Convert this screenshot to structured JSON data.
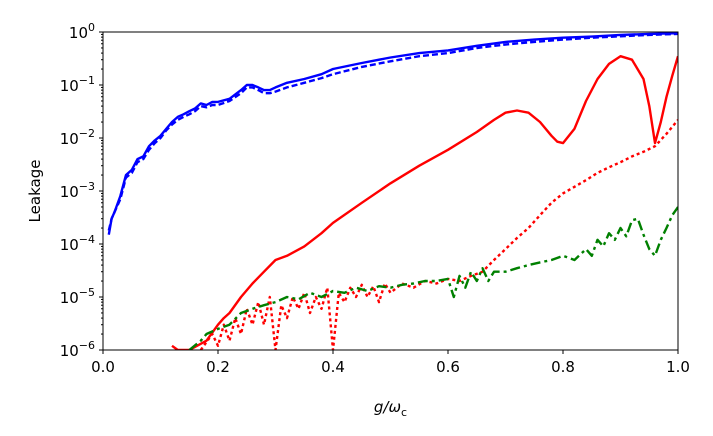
{
  "chart_data": {
    "type": "line",
    "xlabel": "g/ω",
    "xlabel_sub": "c",
    "ylabel": "Leakage",
    "xlim": [
      0.0,
      1.0
    ],
    "ylim": [
      1e-06,
      1
    ],
    "yscale": "log",
    "grid": false,
    "x_ticks": [
      "0.0",
      "0.2",
      "0.4",
      "0.6",
      "0.8",
      "1.0"
    ],
    "y_ticks": [
      {
        "base": "10",
        "exp": "0"
      },
      {
        "base": "10",
        "exp": "−1"
      },
      {
        "base": "10",
        "exp": "−2"
      },
      {
        "base": "10",
        "exp": "−3"
      },
      {
        "base": "10",
        "exp": "−4"
      },
      {
        "base": "10",
        "exp": "−5"
      },
      {
        "base": "10",
        "exp": "−6"
      }
    ],
    "series": [
      {
        "color": "#0000ff",
        "style": "solid",
        "points": [
          [
            0.01,
            0.00015
          ],
          [
            0.015,
            0.0003
          ],
          [
            0.02,
            0.0004
          ],
          [
            0.03,
            0.0008
          ],
          [
            0.04,
            0.002
          ],
          [
            0.05,
            0.0025
          ],
          [
            0.06,
            0.004
          ],
          [
            0.07,
            0.0045
          ],
          [
            0.08,
            0.007
          ],
          [
            0.09,
            0.009
          ],
          [
            0.1,
            0.011
          ],
          [
            0.11,
            0.015
          ],
          [
            0.12,
            0.02
          ],
          [
            0.13,
            0.025
          ],
          [
            0.14,
            0.028
          ],
          [
            0.15,
            0.032
          ],
          [
            0.16,
            0.036
          ],
          [
            0.17,
            0.045
          ],
          [
            0.18,
            0.042
          ],
          [
            0.19,
            0.048
          ],
          [
            0.2,
            0.048
          ],
          [
            0.22,
            0.055
          ],
          [
            0.24,
            0.08
          ],
          [
            0.25,
            0.1
          ],
          [
            0.26,
            0.1
          ],
          [
            0.27,
            0.09
          ],
          [
            0.28,
            0.08
          ],
          [
            0.29,
            0.08
          ],
          [
            0.3,
            0.09
          ],
          [
            0.32,
            0.11
          ],
          [
            0.35,
            0.13
          ],
          [
            0.38,
            0.16
          ],
          [
            0.4,
            0.2
          ],
          [
            0.45,
            0.26
          ],
          [
            0.5,
            0.33
          ],
          [
            0.55,
            0.4
          ],
          [
            0.6,
            0.45
          ],
          [
            0.65,
            0.55
          ],
          [
            0.7,
            0.65
          ],
          [
            0.75,
            0.72
          ],
          [
            0.8,
            0.78
          ],
          [
            0.85,
            0.82
          ],
          [
            0.9,
            0.88
          ],
          [
            0.95,
            0.92
          ],
          [
            1.0,
            0.95
          ]
        ]
      },
      {
        "color": "#0000ff",
        "style": "dashed",
        "points": [
          [
            0.01,
            0.00018
          ],
          [
            0.015,
            0.0003
          ],
          [
            0.02,
            0.0004
          ],
          [
            0.03,
            0.0007
          ],
          [
            0.04,
            0.0018
          ],
          [
            0.05,
            0.0022
          ],
          [
            0.06,
            0.0035
          ],
          [
            0.07,
            0.004
          ],
          [
            0.08,
            0.006
          ],
          [
            0.09,
            0.008
          ],
          [
            0.1,
            0.01
          ],
          [
            0.11,
            0.014
          ],
          [
            0.12,
            0.018
          ],
          [
            0.13,
            0.022
          ],
          [
            0.14,
            0.025
          ],
          [
            0.15,
            0.028
          ],
          [
            0.16,
            0.032
          ],
          [
            0.17,
            0.04
          ],
          [
            0.18,
            0.038
          ],
          [
            0.19,
            0.042
          ],
          [
            0.2,
            0.042
          ],
          [
            0.22,
            0.05
          ],
          [
            0.24,
            0.07
          ],
          [
            0.25,
            0.09
          ],
          [
            0.26,
            0.09
          ],
          [
            0.27,
            0.08
          ],
          [
            0.28,
            0.07
          ],
          [
            0.29,
            0.07
          ],
          [
            0.3,
            0.075
          ],
          [
            0.32,
            0.09
          ],
          [
            0.35,
            0.11
          ],
          [
            0.38,
            0.135
          ],
          [
            0.4,
            0.16
          ],
          [
            0.45,
            0.22
          ],
          [
            0.5,
            0.28
          ],
          [
            0.55,
            0.35
          ],
          [
            0.6,
            0.4
          ],
          [
            0.65,
            0.5
          ],
          [
            0.7,
            0.58
          ],
          [
            0.75,
            0.65
          ],
          [
            0.8,
            0.72
          ],
          [
            0.85,
            0.78
          ],
          [
            0.9,
            0.83
          ],
          [
            0.95,
            0.88
          ],
          [
            1.0,
            0.92
          ]
        ]
      },
      {
        "color": "#ff0000",
        "style": "solid",
        "points": [
          [
            0.12,
            1.2e-06
          ],
          [
            0.13,
            1e-06
          ],
          [
            0.15,
            1e-06
          ],
          [
            0.18,
            1.5e-06
          ],
          [
            0.2,
            3e-06
          ],
          [
            0.21,
            4e-06
          ],
          [
            0.22,
            5e-06
          ],
          [
            0.24,
            1e-05
          ],
          [
            0.26,
            1.8e-05
          ],
          [
            0.28,
            3e-05
          ],
          [
            0.3,
            5e-05
          ],
          [
            0.32,
            6e-05
          ],
          [
            0.35,
            9e-05
          ],
          [
            0.38,
            0.00016
          ],
          [
            0.4,
            0.00025
          ],
          [
            0.45,
            0.0006
          ],
          [
            0.5,
            0.0014
          ],
          [
            0.55,
            0.003
          ],
          [
            0.6,
            0.006
          ],
          [
            0.65,
            0.013
          ],
          [
            0.68,
            0.022
          ],
          [
            0.7,
            0.03
          ],
          [
            0.72,
            0.033
          ],
          [
            0.74,
            0.03
          ],
          [
            0.76,
            0.02
          ],
          [
            0.78,
            0.011
          ],
          [
            0.79,
            0.0085
          ],
          [
            0.8,
            0.008
          ],
          [
            0.82,
            0.015
          ],
          [
            0.84,
            0.05
          ],
          [
            0.86,
            0.13
          ],
          [
            0.88,
            0.25
          ],
          [
            0.9,
            0.35
          ],
          [
            0.92,
            0.3
          ],
          [
            0.94,
            0.13
          ],
          [
            0.95,
            0.04
          ],
          [
            0.96,
            0.008
          ],
          [
            0.97,
            0.02
          ],
          [
            0.98,
            0.06
          ],
          [
            0.99,
            0.15
          ],
          [
            1.0,
            0.35
          ]
        ]
      },
      {
        "color": "#ff0000",
        "style": "dotted",
        "points": [
          [
            0.17,
            1e-06
          ],
          [
            0.19,
            2e-06
          ],
          [
            0.2,
            1.2e-06
          ],
          [
            0.21,
            3e-06
          ],
          [
            0.22,
            1.5e-06
          ],
          [
            0.23,
            4e-06
          ],
          [
            0.24,
            2e-06
          ],
          [
            0.25,
            6e-06
          ],
          [
            0.26,
            3e-06
          ],
          [
            0.27,
            8e-06
          ],
          [
            0.28,
            3e-06
          ],
          [
            0.29,
            1e-05
          ],
          [
            0.3,
            1e-06
          ],
          [
            0.31,
            7e-06
          ],
          [
            0.32,
            4e-06
          ],
          [
            0.33,
            1e-05
          ],
          [
            0.34,
            6e-06
          ],
          [
            0.35,
            1.2e-05
          ],
          [
            0.36,
            5e-06
          ],
          [
            0.37,
            1e-05
          ],
          [
            0.38,
            6e-06
          ],
          [
            0.39,
            1.5e-05
          ],
          [
            0.4,
            1e-06
          ],
          [
            0.41,
            1.2e-05
          ],
          [
            0.42,
            8e-06
          ],
          [
            0.43,
            1.5e-05
          ],
          [
            0.44,
            1e-05
          ],
          [
            0.45,
            1.7e-05
          ],
          [
            0.46,
            1e-05
          ],
          [
            0.47,
            1.6e-05
          ],
          [
            0.48,
            8e-06
          ],
          [
            0.49,
            1.8e-05
          ],
          [
            0.5,
            1.2e-05
          ],
          [
            0.52,
            1.8e-05
          ],
          [
            0.54,
            1.5e-05
          ],
          [
            0.56,
            2e-05
          ],
          [
            0.58,
            1.8e-05
          ],
          [
            0.6,
            2.2e-05
          ],
          [
            0.62,
            2e-05
          ],
          [
            0.64,
            2.5e-05
          ],
          [
            0.66,
            3e-05
          ],
          [
            0.68,
            5e-05
          ],
          [
            0.7,
            8e-05
          ],
          [
            0.72,
            0.00013
          ],
          [
            0.74,
            0.0002
          ],
          [
            0.76,
            0.00035
          ],
          [
            0.78,
            0.0006
          ],
          [
            0.8,
            0.0009
          ],
          [
            0.82,
            0.0012
          ],
          [
            0.84,
            0.0016
          ],
          [
            0.86,
            0.0022
          ],
          [
            0.88,
            0.0028
          ],
          [
            0.9,
            0.0035
          ],
          [
            0.92,
            0.0045
          ],
          [
            0.94,
            0.0055
          ],
          [
            0.96,
            0.007
          ],
          [
            0.98,
            0.012
          ],
          [
            1.0,
            0.022
          ]
        ]
      },
      {
        "color": "#008000",
        "style": "dashdot",
        "points": [
          [
            0.15,
            1e-06
          ],
          [
            0.17,
            1.5e-06
          ],
          [
            0.18,
            2e-06
          ],
          [
            0.2,
            2.5e-06
          ],
          [
            0.22,
            3e-06
          ],
          [
            0.24,
            5e-06
          ],
          [
            0.26,
            6e-06
          ],
          [
            0.28,
            7e-06
          ],
          [
            0.3,
            8e-06
          ],
          [
            0.32,
            1e-05
          ],
          [
            0.34,
            9e-06
          ],
          [
            0.36,
            1.2e-05
          ],
          [
            0.38,
            1e-05
          ],
          [
            0.4,
            1.3e-05
          ],
          [
            0.42,
            1.2e-05
          ],
          [
            0.44,
            1.5e-05
          ],
          [
            0.46,
            1.3e-05
          ],
          [
            0.48,
            1.6e-05
          ],
          [
            0.5,
            1.5e-05
          ],
          [
            0.52,
            1.7e-05
          ],
          [
            0.54,
            1.8e-05
          ],
          [
            0.56,
            2e-05
          ],
          [
            0.58,
            2e-05
          ],
          [
            0.6,
            2.2e-05
          ],
          [
            0.61,
            1e-05
          ],
          [
            0.62,
            2.5e-05
          ],
          [
            0.63,
            1.5e-05
          ],
          [
            0.64,
            3e-05
          ],
          [
            0.65,
            2e-05
          ],
          [
            0.66,
            3.5e-05
          ],
          [
            0.67,
            2e-05
          ],
          [
            0.68,
            3e-05
          ],
          [
            0.7,
            3e-05
          ],
          [
            0.72,
            3.5e-05
          ],
          [
            0.74,
            4e-05
          ],
          [
            0.76,
            4.5e-05
          ],
          [
            0.78,
            5e-05
          ],
          [
            0.8,
            6e-05
          ],
          [
            0.82,
            5e-05
          ],
          [
            0.84,
            8e-05
          ],
          [
            0.85,
            6e-05
          ],
          [
            0.86,
            0.00012
          ],
          [
            0.87,
            9e-05
          ],
          [
            0.88,
            0.00016
          ],
          [
            0.89,
            0.00012
          ],
          [
            0.9,
            0.0002
          ],
          [
            0.91,
            0.00014
          ],
          [
            0.92,
            0.00028
          ],
          [
            0.93,
            0.0003
          ],
          [
            0.94,
            0.00015
          ],
          [
            0.95,
            8e-05
          ],
          [
            0.96,
            6e-05
          ],
          [
            0.97,
            0.00012
          ],
          [
            0.98,
            0.0002
          ],
          [
            0.99,
            0.00035
          ],
          [
            1.0,
            0.0005
          ]
        ]
      }
    ]
  }
}
